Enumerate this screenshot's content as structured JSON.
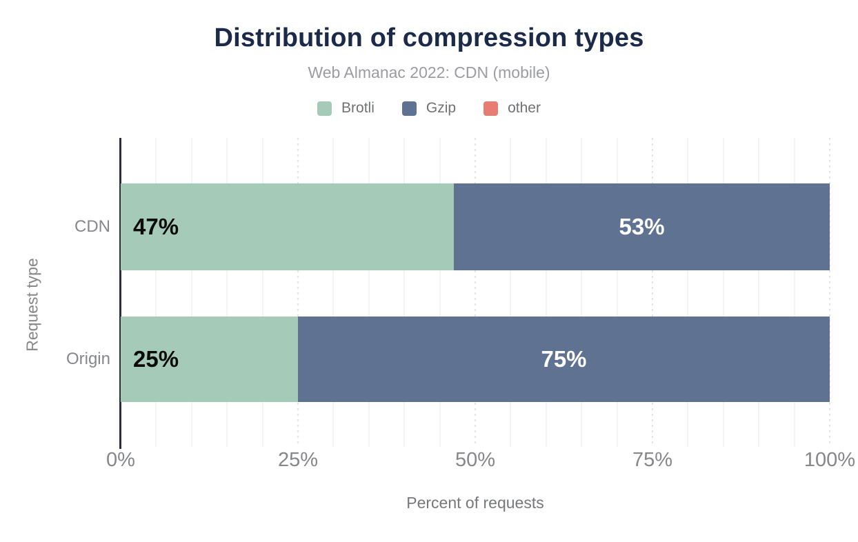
{
  "chart_data": {
    "type": "bar",
    "orientation": "horizontal",
    "stacked": true,
    "title": "Distribution of compression types",
    "subtitle": "Web Almanac 2022: CDN (mobile)",
    "xlabel": "Percent of requests",
    "ylabel": "Request type",
    "categories": [
      "CDN",
      "Origin"
    ],
    "series": [
      {
        "name": "Brotli",
        "color": "#a5cab7",
        "values": [
          47,
          25
        ]
      },
      {
        "name": "Gzip",
        "color": "#5f7291",
        "values": [
          53,
          75
        ]
      },
      {
        "name": "other",
        "color": "#e97c72",
        "values": [
          0,
          0
        ]
      }
    ],
    "value_label_format": "percent",
    "xlim": [
      0,
      100
    ],
    "x_ticks": [
      "0%",
      "25%",
      "50%",
      "75%",
      "100%"
    ],
    "grid": "vertical; faint solid minor lines every 5%, dotted major lines every 25%",
    "legend_position": "top"
  },
  "colors": {
    "background": "#ffffff",
    "title_text": "#1b2a49",
    "subtitle_text": "#9a9ca1",
    "legend_text": "#6f7176",
    "axis_text": "#85878b",
    "axis_title_text": "#76787c",
    "axis_line": "#2b2e35",
    "gridline_minor": "#f4f4f5",
    "gridline_major": "#e4e5e7",
    "bar_label_dark": "#0b0b0b",
    "bar_label_light": "#ffffff"
  }
}
